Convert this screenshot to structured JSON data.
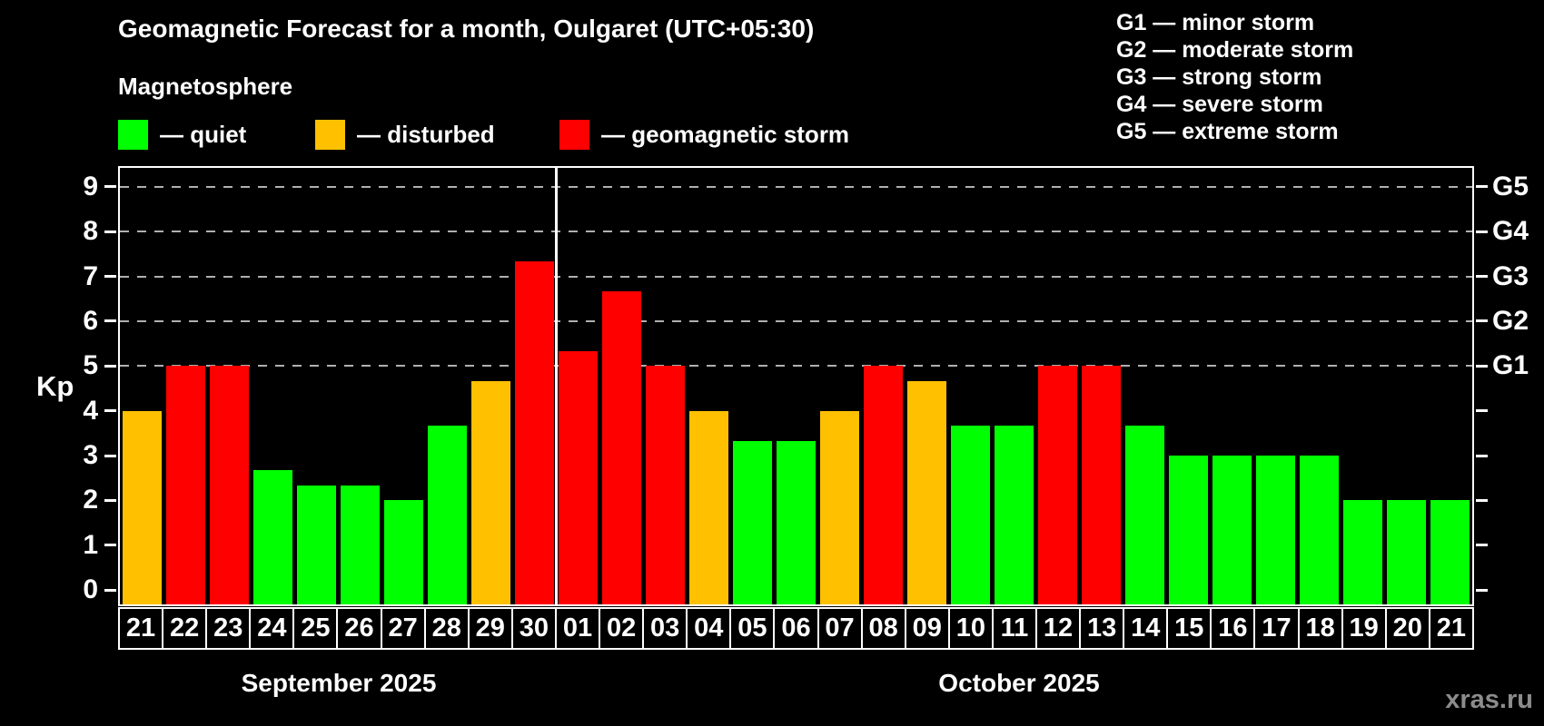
{
  "title": "Geomagnetic Forecast for a month, Oulgaret (UTC+05:30)",
  "subtitle": "Magnetosphere",
  "legend": {
    "quiet": "— quiet",
    "disturbed": "— disturbed",
    "storm": "— geomagnetic storm"
  },
  "g_legend": [
    "G1 — minor storm",
    "G2 — moderate storm",
    "G3 — strong storm",
    "G4 — severe storm",
    "G5 — extreme storm"
  ],
  "months": [
    {
      "label": "September 2025"
    },
    {
      "label": "October 2025"
    }
  ],
  "watermark": "xras.ru",
  "colors": {
    "quiet": "#00ff00",
    "disturbed": "#ffc000",
    "storm": "#ff0000",
    "gridline": "#b0b0b0",
    "axis": "#ffffff",
    "background": "#000000"
  },
  "chart_data": {
    "type": "bar",
    "title": "Geomagnetic Forecast for a month, Oulgaret (UTC+05:30)",
    "ylabel": "Kp",
    "ylim": [
      0,
      9
    ],
    "ylim_display": [
      -0.32,
      9.42
    ],
    "y_ticks": [
      0,
      1,
      2,
      3,
      4,
      5,
      6,
      7,
      8,
      9
    ],
    "grid": "dashed horizontal lines at Kp 5-9 only",
    "g_gridlines": [
      {
        "kp": 5,
        "label": "G1"
      },
      {
        "kp": 6,
        "label": "G2"
      },
      {
        "kp": 7,
        "label": "G3"
      },
      {
        "kp": 8,
        "label": "G4"
      },
      {
        "kp": 9,
        "label": "G5"
      }
    ],
    "month_divider_after_index": 9,
    "categories": [
      "21",
      "22",
      "23",
      "24",
      "25",
      "26",
      "27",
      "28",
      "29",
      "30",
      "01",
      "02",
      "03",
      "04",
      "05",
      "06",
      "07",
      "08",
      "09",
      "10",
      "11",
      "12",
      "13",
      "14",
      "15",
      "16",
      "17",
      "18",
      "19",
      "20",
      "21"
    ],
    "bars": [
      {
        "day": "21",
        "month": "September 2025",
        "value": 4.0,
        "status": "disturbed"
      },
      {
        "day": "22",
        "month": "September 2025",
        "value": 5.0,
        "status": "storm"
      },
      {
        "day": "23",
        "month": "September 2025",
        "value": 5.0,
        "status": "storm"
      },
      {
        "day": "24",
        "month": "September 2025",
        "value": 2.67,
        "status": "quiet"
      },
      {
        "day": "25",
        "month": "September 2025",
        "value": 2.33,
        "status": "quiet"
      },
      {
        "day": "26",
        "month": "September 2025",
        "value": 2.33,
        "status": "quiet"
      },
      {
        "day": "27",
        "month": "September 2025",
        "value": 2.0,
        "status": "quiet"
      },
      {
        "day": "28",
        "month": "September 2025",
        "value": 3.67,
        "status": "quiet"
      },
      {
        "day": "29",
        "month": "September 2025",
        "value": 4.67,
        "status": "disturbed"
      },
      {
        "day": "30",
        "month": "September 2025",
        "value": 7.33,
        "status": "storm"
      },
      {
        "day": "01",
        "month": "October 2025",
        "value": 5.33,
        "status": "storm"
      },
      {
        "day": "02",
        "month": "October 2025",
        "value": 6.67,
        "status": "storm"
      },
      {
        "day": "03",
        "month": "October 2025",
        "value": 5.0,
        "status": "storm"
      },
      {
        "day": "04",
        "month": "October 2025",
        "value": 4.0,
        "status": "disturbed"
      },
      {
        "day": "05",
        "month": "October 2025",
        "value": 3.33,
        "status": "quiet"
      },
      {
        "day": "06",
        "month": "October 2025",
        "value": 3.33,
        "status": "quiet"
      },
      {
        "day": "07",
        "month": "October 2025",
        "value": 4.0,
        "status": "disturbed"
      },
      {
        "day": "08",
        "month": "October 2025",
        "value": 5.0,
        "status": "storm"
      },
      {
        "day": "09",
        "month": "October 2025",
        "value": 4.67,
        "status": "disturbed"
      },
      {
        "day": "10",
        "month": "October 2025",
        "value": 3.67,
        "status": "quiet"
      },
      {
        "day": "11",
        "month": "October 2025",
        "value": 3.67,
        "status": "quiet"
      },
      {
        "day": "12",
        "month": "October 2025",
        "value": 5.0,
        "status": "storm"
      },
      {
        "day": "13",
        "month": "October 2025",
        "value": 5.0,
        "status": "storm"
      },
      {
        "day": "14",
        "month": "October 2025",
        "value": 3.67,
        "status": "quiet"
      },
      {
        "day": "15",
        "month": "October 2025",
        "value": 3.0,
        "status": "quiet"
      },
      {
        "day": "16",
        "month": "October 2025",
        "value": 3.0,
        "status": "quiet"
      },
      {
        "day": "17",
        "month": "October 2025",
        "value": 3.0,
        "status": "quiet"
      },
      {
        "day": "18",
        "month": "October 2025",
        "value": 3.0,
        "status": "quiet"
      },
      {
        "day": "19",
        "month": "October 2025",
        "value": 2.0,
        "status": "quiet"
      },
      {
        "day": "20",
        "month": "October 2025",
        "value": 2.0,
        "status": "quiet"
      },
      {
        "day": "21",
        "month": "October 2025",
        "value": 2.0,
        "status": "quiet"
      }
    ]
  }
}
